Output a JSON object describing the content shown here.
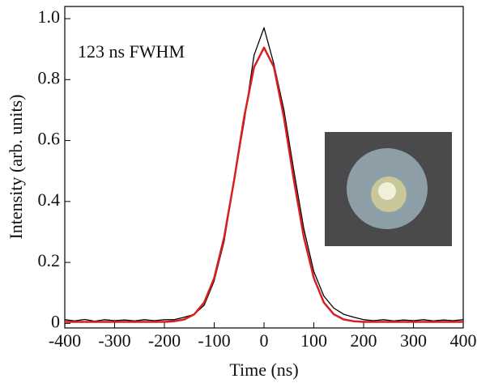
{
  "chart_data": {
    "type": "line",
    "xlabel": "Time (ns)",
    "ylabel": "Intensity (arb. units)",
    "annotation": "123 ns FWHM",
    "xlim": [
      -400,
      400
    ],
    "xticks": [
      -400,
      -300,
      -200,
      -100,
      0,
      100,
      200,
      300,
      400
    ],
    "ylim": [
      -0.015,
      1.04
    ],
    "yticks": [
      0,
      0.2,
      0.4,
      0.6,
      0.8,
      {
        "value": 1,
        "label": "1.0"
      }
    ],
    "x": [
      -400,
      -380,
      -360,
      -340,
      -320,
      -300,
      -280,
      -260,
      -240,
      -220,
      -200,
      -180,
      -160,
      -140,
      -120,
      -100,
      -80,
      -60,
      -40,
      -20,
      0,
      20,
      40,
      60,
      80,
      100,
      120,
      140,
      160,
      180,
      200,
      220,
      240,
      260,
      280,
      300,
      320,
      340,
      360,
      380,
      400
    ],
    "series": [
      {
        "color": "#000000",
        "values": [
          0.012,
          0.008,
          0.013,
          0.007,
          0.012,
          0.009,
          0.011,
          0.008,
          0.012,
          0.009,
          0.012,
          0.012,
          0.02,
          0.03,
          0.06,
          0.14,
          0.27,
          0.47,
          0.66,
          0.88,
          0.97,
          0.85,
          0.7,
          0.5,
          0.31,
          0.17,
          0.09,
          0.05,
          0.03,
          0.02,
          0.012,
          0.009,
          0.012,
          0.008,
          0.011,
          0.009,
          0.012,
          0.008,
          0.011,
          0.009,
          0.012
        ]
      },
      {
        "color": "#d62020",
        "values": [
          0.005,
          0.005,
          0.005,
          0.005,
          0.005,
          0.005,
          0.005,
          0.005,
          0.005,
          0.005,
          0.005,
          0.007,
          0.013,
          0.03,
          0.069,
          0.149,
          0.283,
          0.47,
          0.676,
          0.841,
          0.905,
          0.841,
          0.676,
          0.47,
          0.283,
          0.149,
          0.069,
          0.03,
          0.013,
          0.007,
          0.005,
          0.005,
          0.005,
          0.005,
          0.005,
          0.005,
          0.005,
          0.005,
          0.005,
          0.005,
          0.005
        ]
      }
    ]
  }
}
